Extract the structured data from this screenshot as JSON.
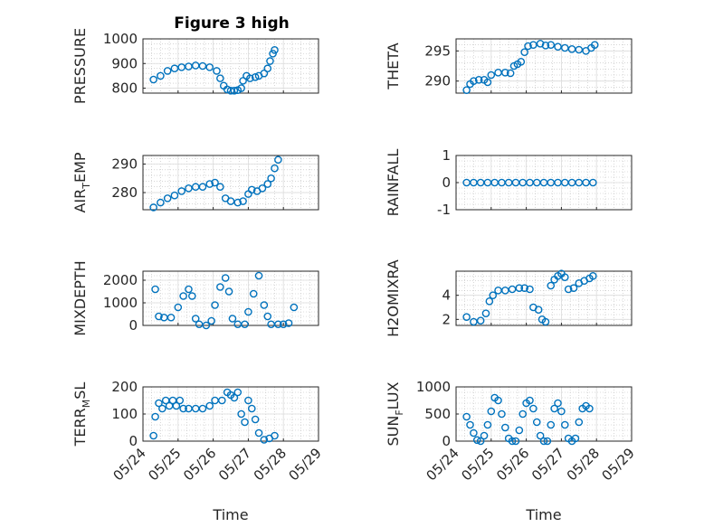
{
  "figure": {
    "title": "Figure 3 high",
    "marker_color": "#0072bd",
    "grid_color": "#bdbdbd"
  },
  "chart_data": [
    {
      "type": "scatter",
      "ylabel": "PRESSURE",
      "xlabel": "",
      "title": "Figure 3 high",
      "ylim": [
        780,
        1000
      ],
      "yticks": [
        800,
        900,
        1000
      ],
      "xlim": [
        0,
        5
      ],
      "xticks": [
        0,
        1,
        2,
        3,
        4,
        5
      ],
      "xticklabels": [
        "05/24",
        "05/25",
        "05/26",
        "05/27",
        "05/28",
        "05/29"
      ],
      "show_xticklabels": false,
      "grid": true,
      "points": [
        [
          0.3,
          835
        ],
        [
          0.5,
          850
        ],
        [
          0.7,
          870
        ],
        [
          0.9,
          880
        ],
        [
          1.1,
          885
        ],
        [
          1.3,
          888
        ],
        [
          1.5,
          892
        ],
        [
          1.7,
          890
        ],
        [
          1.9,
          885
        ],
        [
          2.1,
          870
        ],
        [
          2.2,
          840
        ],
        [
          2.3,
          810
        ],
        [
          2.4,
          795
        ],
        [
          2.5,
          790
        ],
        [
          2.6,
          790
        ],
        [
          2.7,
          792
        ],
        [
          2.8,
          800
        ],
        [
          2.85,
          830
        ],
        [
          2.95,
          850
        ],
        [
          3.05,
          840
        ],
        [
          3.2,
          845
        ],
        [
          3.3,
          850
        ],
        [
          3.45,
          860
        ],
        [
          3.55,
          880
        ],
        [
          3.62,
          910
        ],
        [
          3.7,
          940
        ],
        [
          3.75,
          955
        ]
      ]
    },
    {
      "type": "scatter",
      "ylabel": "THETA",
      "xlabel": "",
      "ylim": [
        288,
        297
      ],
      "yticks": [
        290,
        295
      ],
      "xlim": [
        0,
        5
      ],
      "xticks": [
        0,
        1,
        2,
        3,
        4,
        5
      ],
      "xticklabels": [
        "05/24",
        "05/25",
        "05/26",
        "05/27",
        "05/28",
        "05/29"
      ],
      "show_xticklabels": false,
      "grid": true,
      "points": [
        [
          0.3,
          288.5
        ],
        [
          0.4,
          289.5
        ],
        [
          0.5,
          290
        ],
        [
          0.65,
          290.2
        ],
        [
          0.8,
          290.2
        ],
        [
          0.9,
          289.8
        ],
        [
          1.0,
          291
        ],
        [
          1.2,
          291.4
        ],
        [
          1.4,
          291.4
        ],
        [
          1.55,
          291.3
        ],
        [
          1.65,
          292.5
        ],
        [
          1.75,
          292.8
        ],
        [
          1.85,
          293.2
        ],
        [
          1.95,
          294.8
        ],
        [
          2.05,
          295.8
        ],
        [
          2.2,
          296
        ],
        [
          2.4,
          296.2
        ],
        [
          2.55,
          295.9
        ],
        [
          2.7,
          296
        ],
        [
          2.9,
          295.7
        ],
        [
          3.1,
          295.5
        ],
        [
          3.3,
          295.3
        ],
        [
          3.5,
          295.2
        ],
        [
          3.7,
          295
        ],
        [
          3.85,
          295.5
        ],
        [
          3.95,
          296
        ]
      ]
    },
    {
      "type": "scatter",
      "ylabel": "AIR_TEMP",
      "xlabel": "",
      "ylim": [
        274,
        293
      ],
      "yticks": [
        280,
        290
      ],
      "xlim": [
        0,
        5
      ],
      "xticks": [
        0,
        1,
        2,
        3,
        4,
        5
      ],
      "xticklabels": [
        "05/24",
        "05/25",
        "05/26",
        "05/27",
        "05/28",
        "05/29"
      ],
      "show_xticklabels": false,
      "grid": true,
      "points": [
        [
          0.3,
          274.8
        ],
        [
          0.5,
          276.5
        ],
        [
          0.7,
          278
        ],
        [
          0.9,
          279
        ],
        [
          1.1,
          280.5
        ],
        [
          1.3,
          281.5
        ],
        [
          1.5,
          282
        ],
        [
          1.7,
          282
        ],
        [
          1.9,
          283
        ],
        [
          2.05,
          283.5
        ],
        [
          2.2,
          282
        ],
        [
          2.35,
          278
        ],
        [
          2.5,
          277
        ],
        [
          2.7,
          276.5
        ],
        [
          2.85,
          277
        ],
        [
          3.0,
          279.5
        ],
        [
          3.1,
          281
        ],
        [
          3.25,
          280.5
        ],
        [
          3.4,
          281.5
        ],
        [
          3.55,
          283
        ],
        [
          3.65,
          285
        ],
        [
          3.75,
          288.5
        ],
        [
          3.85,
          291.5
        ]
      ]
    },
    {
      "type": "scatter",
      "ylabel": "RAINFALL",
      "xlabel": "",
      "ylim": [
        -1,
        1
      ],
      "yticks": [
        -1,
        0,
        1
      ],
      "xlim": [
        0,
        5
      ],
      "xticks": [
        0,
        1,
        2,
        3,
        4,
        5
      ],
      "xticklabels": [
        "05/24",
        "05/25",
        "05/26",
        "05/27",
        "05/28",
        "05/29"
      ],
      "show_xticklabels": false,
      "grid": true,
      "points": [
        [
          0.3,
          0
        ],
        [
          0.5,
          0
        ],
        [
          0.7,
          0
        ],
        [
          0.9,
          0
        ],
        [
          1.1,
          0
        ],
        [
          1.3,
          0
        ],
        [
          1.5,
          0
        ],
        [
          1.7,
          0
        ],
        [
          1.9,
          0
        ],
        [
          2.1,
          0
        ],
        [
          2.3,
          0
        ],
        [
          2.5,
          0
        ],
        [
          2.7,
          0
        ],
        [
          2.9,
          0
        ],
        [
          3.1,
          0
        ],
        [
          3.3,
          0
        ],
        [
          3.5,
          0
        ],
        [
          3.7,
          0
        ],
        [
          3.9,
          0
        ]
      ]
    },
    {
      "type": "scatter",
      "ylabel": "MIXDEPTH",
      "xlabel": "",
      "ylim": [
        0,
        2400
      ],
      "yticks": [
        0,
        1000,
        2000
      ],
      "xlim": [
        0,
        5
      ],
      "xticks": [
        0,
        1,
        2,
        3,
        4,
        5
      ],
      "xticklabels": [
        "05/24",
        "05/25",
        "05/26",
        "05/27",
        "05/28",
        "05/29"
      ],
      "show_xticklabels": false,
      "grid": true,
      "points": [
        [
          0.35,
          1600
        ],
        [
          0.45,
          400
        ],
        [
          0.6,
          350
        ],
        [
          0.8,
          350
        ],
        [
          1.0,
          800
        ],
        [
          1.15,
          1300
        ],
        [
          1.3,
          1600
        ],
        [
          1.4,
          1300
        ],
        [
          1.5,
          300
        ],
        [
          1.6,
          50
        ],
        [
          1.8,
          0
        ],
        [
          1.95,
          200
        ],
        [
          2.05,
          900
        ],
        [
          2.2,
          1700
        ],
        [
          2.35,
          2100
        ],
        [
          2.45,
          1500
        ],
        [
          2.55,
          300
        ],
        [
          2.7,
          50
        ],
        [
          2.9,
          50
        ],
        [
          3.0,
          600
        ],
        [
          3.15,
          1400
        ],
        [
          3.3,
          2200
        ],
        [
          3.45,
          900
        ],
        [
          3.55,
          400
        ],
        [
          3.65,
          50
        ],
        [
          3.85,
          50
        ],
        [
          4.0,
          50
        ],
        [
          4.15,
          100
        ],
        [
          4.3,
          800
        ]
      ]
    },
    {
      "type": "scatter",
      "ylabel": "H2OMIXRA",
      "xlabel": "",
      "ylim": [
        1.5,
        6
      ],
      "yticks": [
        2,
        4
      ],
      "xlim": [
        0,
        5
      ],
      "xticks": [
        0,
        1,
        2,
        3,
        4,
        5
      ],
      "xticklabels": [
        "05/24",
        "05/25",
        "05/26",
        "05/27",
        "05/28",
        "05/29"
      ],
      "show_xticklabels": false,
      "grid": true,
      "points": [
        [
          0.3,
          2.2
        ],
        [
          0.5,
          1.8
        ],
        [
          0.7,
          1.9
        ],
        [
          0.85,
          2.5
        ],
        [
          0.95,
          3.5
        ],
        [
          1.05,
          4
        ],
        [
          1.2,
          4.4
        ],
        [
          1.4,
          4.4
        ],
        [
          1.6,
          4.5
        ],
        [
          1.8,
          4.6
        ],
        [
          1.95,
          4.6
        ],
        [
          2.1,
          4.5
        ],
        [
          2.2,
          3.0
        ],
        [
          2.35,
          2.8
        ],
        [
          2.45,
          2.0
        ],
        [
          2.55,
          1.8
        ],
        [
          2.7,
          4.8
        ],
        [
          2.8,
          5.3
        ],
        [
          2.9,
          5.6
        ],
        [
          3.0,
          5.8
        ],
        [
          3.1,
          5.5
        ],
        [
          3.2,
          4.5
        ],
        [
          3.35,
          4.6
        ],
        [
          3.5,
          5.0
        ],
        [
          3.65,
          5.2
        ],
        [
          3.8,
          5.4
        ],
        [
          3.9,
          5.6
        ]
      ]
    },
    {
      "type": "scatter",
      "ylabel": "TERR_MSL",
      "xlabel": "Time",
      "ylim": [
        0,
        200
      ],
      "yticks": [
        0,
        100,
        200
      ],
      "xlim": [
        0,
        5
      ],
      "xticks": [
        0,
        1,
        2,
        3,
        4,
        5
      ],
      "xticklabels": [
        "05/24",
        "05/25",
        "05/26",
        "05/27",
        "05/28",
        "05/29"
      ],
      "show_xticklabels": true,
      "grid": true,
      "points": [
        [
          0.3,
          20
        ],
        [
          0.35,
          90
        ],
        [
          0.45,
          140
        ],
        [
          0.55,
          120
        ],
        [
          0.65,
          150
        ],
        [
          0.75,
          130
        ],
        [
          0.85,
          150
        ],
        [
          0.95,
          130
        ],
        [
          1.05,
          150
        ],
        [
          1.15,
          120
        ],
        [
          1.3,
          120
        ],
        [
          1.5,
          120
        ],
        [
          1.7,
          120
        ],
        [
          1.9,
          130
        ],
        [
          2.05,
          150
        ],
        [
          2.25,
          150
        ],
        [
          2.4,
          180
        ],
        [
          2.5,
          170
        ],
        [
          2.6,
          160
        ],
        [
          2.7,
          180
        ],
        [
          2.8,
          100
        ],
        [
          2.9,
          70
        ],
        [
          3.0,
          150
        ],
        [
          3.1,
          120
        ],
        [
          3.2,
          80
        ],
        [
          3.3,
          30
        ],
        [
          3.45,
          5
        ],
        [
          3.6,
          10
        ],
        [
          3.75,
          20
        ]
      ]
    },
    {
      "type": "scatter",
      "ylabel": "SUN_FLUX",
      "xlabel": "Time",
      "ylim": [
        0,
        1000
      ],
      "yticks": [
        0,
        500,
        1000
      ],
      "xlim": [
        0,
        5
      ],
      "xticks": [
        0,
        1,
        2,
        3,
        4,
        5
      ],
      "xticklabels": [
        "05/24",
        "05/25",
        "05/26",
        "05/27",
        "05/28",
        "05/29"
      ],
      "show_xticklabels": true,
      "grid": true,
      "points": [
        [
          0.3,
          450
        ],
        [
          0.4,
          300
        ],
        [
          0.5,
          150
        ],
        [
          0.6,
          20
        ],
        [
          0.7,
          0
        ],
        [
          0.8,
          100
        ],
        [
          0.9,
          300
        ],
        [
          1.0,
          550
        ],
        [
          1.1,
          800
        ],
        [
          1.2,
          750
        ],
        [
          1.3,
          500
        ],
        [
          1.4,
          250
        ],
        [
          1.5,
          50
        ],
        [
          1.6,
          0
        ],
        [
          1.7,
          0
        ],
        [
          1.8,
          200
        ],
        [
          1.9,
          500
        ],
        [
          2.0,
          700
        ],
        [
          2.1,
          750
        ],
        [
          2.2,
          600
        ],
        [
          2.3,
          350
        ],
        [
          2.4,
          100
        ],
        [
          2.5,
          0
        ],
        [
          2.6,
          0
        ],
        [
          2.7,
          300
        ],
        [
          2.8,
          600
        ],
        [
          2.9,
          700
        ],
        [
          3.0,
          550
        ],
        [
          3.1,
          300
        ],
        [
          3.2,
          50
        ],
        [
          3.3,
          0
        ],
        [
          3.4,
          50
        ],
        [
          3.5,
          350
        ],
        [
          3.6,
          600
        ],
        [
          3.7,
          650
        ],
        [
          3.8,
          600
        ]
      ]
    }
  ]
}
